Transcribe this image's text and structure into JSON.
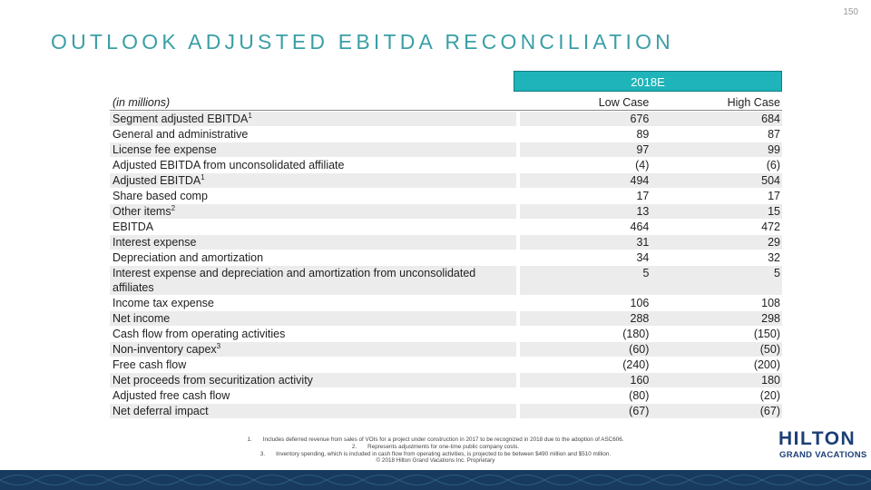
{
  "page_number": "150",
  "title": "OUTLOOK ADJUSTED EBITDA RECONCILIATION",
  "table": {
    "period": "2018E",
    "columns": [
      "(in millions)",
      "Low Case",
      "High Case"
    ],
    "rows": [
      {
        "label": "Segment adjusted EBITDA",
        "note": "1",
        "low": "676",
        "high": "684"
      },
      {
        "label": "General and administrative",
        "low": "89",
        "high": "87"
      },
      {
        "label": "License fee expense",
        "low": "97",
        "high": "99"
      },
      {
        "label": "Adjusted EBITDA from unconsolidated affiliate",
        "low": "(4)",
        "high": "(6)"
      },
      {
        "label": "Adjusted EBITDA",
        "note": "1",
        "low": "494",
        "high": "504"
      },
      {
        "label": "Share based comp",
        "low": "17",
        "high": "17"
      },
      {
        "label": "Other items",
        "note": "2",
        "low": "13",
        "high": "15"
      },
      {
        "label": "EBITDA",
        "low": "464",
        "high": "472"
      },
      {
        "label": "Interest expense",
        "low": "31",
        "high": "29"
      },
      {
        "label": "Depreciation and amortization",
        "low": "34",
        "high": "32"
      },
      {
        "label": "Interest expense and depreciation and amortization from unconsolidated affiliates",
        "low": "5",
        "high": "5"
      },
      {
        "label": "Income tax expense",
        "low": "106",
        "high": "108"
      },
      {
        "label": "Net income",
        "low": "288",
        "high": "298"
      },
      {
        "label": "Cash flow from operating activities",
        "low": "(180)",
        "high": "(150)"
      },
      {
        "label": "Non-inventory capex",
        "note": "3",
        "low": "(60)",
        "high": "(50)"
      },
      {
        "label": "Free cash flow",
        "low": "(240)",
        "high": "(200)"
      },
      {
        "label": "Net proceeds from securitization activity",
        "low": "160",
        "high": "180"
      },
      {
        "label": "Adjusted free cash flow",
        "low": "(80)",
        "high": "(20)"
      },
      {
        "label": "Net deferral impact",
        "low": "(67)",
        "high": "(67)"
      }
    ]
  },
  "footnotes": [
    {
      "number": "1.",
      "text": "Includes deferred revenue from sales of VOIs for a project under construction in 2017 to be recognized in 2018 due to the adoption of ASC606."
    },
    {
      "number": "2.",
      "text": "Represents adjustments for one-time public company costs."
    },
    {
      "number": "3.",
      "text": "Inventory spending, which is included in cash flow from operating activities, is projected to be between $490 million and $510 million."
    }
  ],
  "copyright": "© 2018 Hilton Grand Vacations Inc. Proprietary",
  "logo": {
    "name": "HILTON",
    "tagline": "GRAND VACATIONS"
  }
}
